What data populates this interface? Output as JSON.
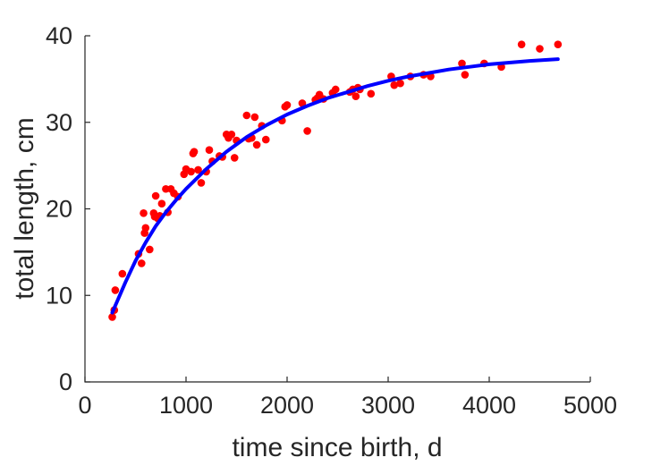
{
  "chart_data": {
    "type": "scatter",
    "title": "",
    "xlabel": "time since birth, d",
    "ylabel": "total length, cm",
    "xlim": [
      0,
      5000
    ],
    "ylim": [
      0,
      40
    ],
    "xticks": [
      "0",
      "1000",
      "2000",
      "3000",
      "4000",
      "5000"
    ],
    "yticks": [
      "0",
      "10",
      "20",
      "30",
      "40"
    ],
    "grid": false,
    "legend": "none",
    "colors": {
      "points": "#ff0000",
      "curve": "#0000ff",
      "axis": "#262626"
    },
    "series": [
      {
        "kind": "points",
        "x": [
          270,
          290,
          300,
          370,
          530,
          560,
          580,
          590,
          600,
          640,
          680,
          690,
          700,
          720,
          740,
          760,
          800,
          820,
          850,
          880,
          920,
          980,
          1000,
          1050,
          1070,
          1080,
          1120,
          1150,
          1200,
          1230,
          1260,
          1330,
          1360,
          1400,
          1420,
          1450,
          1480,
          1500,
          1600,
          1620,
          1650,
          1680,
          1700,
          1750,
          1790,
          1950,
          1980,
          2000,
          2150,
          2200,
          2280,
          2300,
          2320,
          2360,
          2450,
          2480,
          2620,
          2650,
          2680,
          2700,
          2720,
          2830,
          3030,
          3060,
          3120,
          3220,
          3350,
          3420,
          3730,
          3760,
          3950,
          4120,
          4320,
          4500,
          4680
        ],
        "y": [
          7.5,
          8.3,
          10.6,
          12.5,
          14.8,
          13.7,
          19.5,
          17.2,
          17.8,
          15.3,
          19.5,
          19.1,
          21.5,
          18.9,
          19.2,
          20.6,
          22.3,
          19.6,
          22.3,
          21.8,
          21.4,
          24.0,
          24.6,
          24.3,
          26.4,
          26.6,
          24.5,
          23.0,
          24.3,
          26.8,
          25.5,
          26.1,
          26.0,
          28.6,
          28.2,
          28.6,
          25.9,
          27.9,
          30.8,
          28.1,
          28.2,
          30.6,
          27.4,
          29.6,
          28.0,
          30.2,
          31.8,
          32.0,
          32.2,
          29.0,
          32.6,
          32.8,
          33.2,
          32.7,
          33.4,
          33.8,
          33.5,
          33.8,
          33.0,
          34.0,
          33.8,
          33.3,
          35.3,
          34.3,
          34.5,
          35.3,
          35.5,
          35.3,
          36.8,
          35.5,
          36.8,
          36.4,
          39.0,
          38.5,
          39.0
        ]
      },
      {
        "kind": "curve",
        "x": [
          270,
          400,
          500,
          600,
          700,
          800,
          900,
          1000,
          1200,
          1400,
          1600,
          1800,
          2000,
          2200,
          2400,
          2600,
          2800,
          3000,
          3200,
          3400,
          3600,
          3800,
          4000,
          4200,
          4400,
          4680
        ],
        "y": [
          8.0,
          11.5,
          14.0,
          16.1,
          18.0,
          19.6,
          21.0,
          22.3,
          24.6,
          26.6,
          28.3,
          29.7,
          30.9,
          31.9,
          32.8,
          33.5,
          34.2,
          34.8,
          35.3,
          35.7,
          36.1,
          36.4,
          36.7,
          36.9,
          37.1,
          37.3
        ]
      }
    ]
  }
}
